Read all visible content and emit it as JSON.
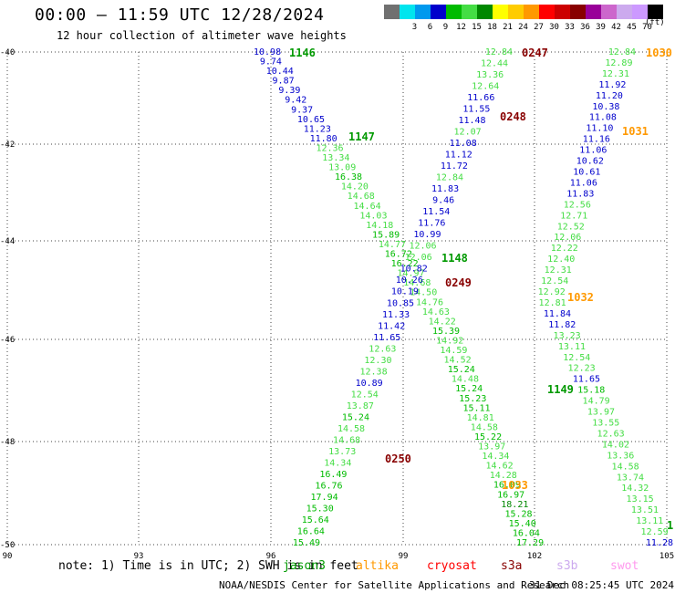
{
  "title": "00:00 — 11:59 UTC 12/28/2024",
  "subtitle": "12 hour collection of altimeter wave heights",
  "color_scale": {
    "colors": [
      "#707070",
      "#00e5ee",
      "#0099ee",
      "#0000cc",
      "#00bb00",
      "#44dd44",
      "#008800",
      "#ffff00",
      "#ffcc00",
      "#ff9900",
      "#ff0000",
      "#cc0000",
      "#880000",
      "#990099",
      "#cc66cc",
      "#ccaaee",
      "#cc99ff",
      "#000000"
    ],
    "labels": [
      "",
      "3",
      "6",
      "9",
      "12",
      "15",
      "18",
      "21",
      "24",
      "27",
      "30",
      "33",
      "36",
      "39",
      "42",
      "45",
      "70",
      ""
    ],
    "unit": "(ft)"
  },
  "map": {
    "lon_ticks": [
      "90",
      "93",
      "96",
      "99",
      "102",
      "105"
    ],
    "lat_ticks": [
      "-40",
      "-42",
      "-44",
      "-46",
      "-48",
      "-50"
    ]
  },
  "time_labels": [
    {
      "text": "1146",
      "color": "#009900"
    },
    {
      "text": "1147",
      "color": "#009900"
    },
    {
      "text": "1148",
      "color": "#009900"
    },
    {
      "text": "1149",
      "color": "#009900"
    },
    {
      "text": "1",
      "color": "#009900"
    },
    {
      "text": "0247",
      "color": "#880000"
    },
    {
      "text": "0248",
      "color": "#880000"
    },
    {
      "text": "0249",
      "color": "#880000"
    },
    {
      "text": "0250",
      "color": "#880000"
    },
    {
      "text": "1030",
      "color": "#ff9900"
    },
    {
      "text": "1031",
      "color": "#ff9900"
    },
    {
      "text": "1032",
      "color": "#ff9900"
    },
    {
      "text": "1033",
      "color": "#ff9900"
    }
  ],
  "tracks": [
    {
      "name": "track-a",
      "values": [
        "10.98",
        "9.74",
        "10.44",
        "9.87",
        "9.39",
        "9.42",
        "9.37",
        "10.65",
        "11.23",
        "11.80",
        "12.36",
        "13.34",
        "13.09",
        "16.38",
        "14.20",
        "14.68",
        "14.64",
        "14.03",
        "14.18",
        "15.89",
        "14.77",
        "16.72",
        "16.22",
        "14.97",
        "14.68",
        "14.50",
        "14.76",
        "14.63",
        "14.22",
        "15.39",
        "14.92",
        "14.59",
        "14.52",
        "15.24",
        "14.48",
        "15.24",
        "15.23",
        "15.11",
        "14.81",
        "14.58",
        "15.22",
        "13.97",
        "14.34",
        "14.62",
        "14.28",
        "16.09",
        "16.97",
        "18.21",
        "15.28",
        "15.40",
        "16.04",
        "17.29"
      ]
    },
    {
      "name": "track-b",
      "values": [
        "12.84",
        "12.44",
        "13.36",
        "12.64",
        "11.66",
        "11.55",
        "11.48",
        "12.07",
        "11.08",
        "11.12",
        "11.72",
        "12.84",
        "11.83",
        "9.46",
        "11.54",
        "11.76",
        "10.99",
        "12.06",
        "12.06",
        "10.82",
        "10.26",
        "10.19",
        "10.85",
        "11.33",
        "11.42",
        "11.65",
        "12.63",
        "12.30",
        "12.38",
        "10.89",
        "12.54",
        "13.87",
        "15.24",
        "14.58",
        "14.68",
        "13.73",
        "14.34",
        "16.49",
        "16.76",
        "17.94",
        "15.30",
        "15.64",
        "16.64",
        "15.49"
      ]
    },
    {
      "name": "track-c",
      "values": [
        "12.84",
        "12.89",
        "12.31",
        "11.92",
        "11.20",
        "10.38",
        "11.08",
        "11.10",
        "11.16",
        "11.06",
        "10.62",
        "10.61",
        "11.06",
        "11.83",
        "12.56",
        "12.71",
        "12.52",
        "12.06",
        "12.22",
        "12.40",
        "12.31",
        "12.54",
        "12.92",
        "12.81",
        "11.84",
        "11.82",
        "13.23",
        "13.11",
        "12.54",
        "12.23",
        "11.65",
        "15.18",
        "14.79",
        "13.97",
        "13.55",
        "12.63",
        "14.02",
        "13.36",
        "14.58",
        "13.74",
        "14.32",
        "13.15",
        "13.51",
        "13.11",
        "12.59",
        "11.28"
      ]
    }
  ],
  "note": "note: 1) Time is in UTC; 2) SWH is in feet",
  "satellites": [
    {
      "name": "jason3",
      "color": "#009900"
    },
    {
      "name": "altika",
      "color": "#ff9900"
    },
    {
      "name": "cryosat",
      "color": "#ff0000"
    },
    {
      "name": "s3a",
      "color": "#880000"
    },
    {
      "name": "s3b",
      "color": "#ccaaee"
    },
    {
      "name": "swot",
      "color": "#ff99ee"
    }
  ],
  "footer": {
    "org": "NOAA/NESDIS Center for Satellite Applications and Research",
    "timestamp": "31 Dec 08:25:45 UTC 2024"
  }
}
